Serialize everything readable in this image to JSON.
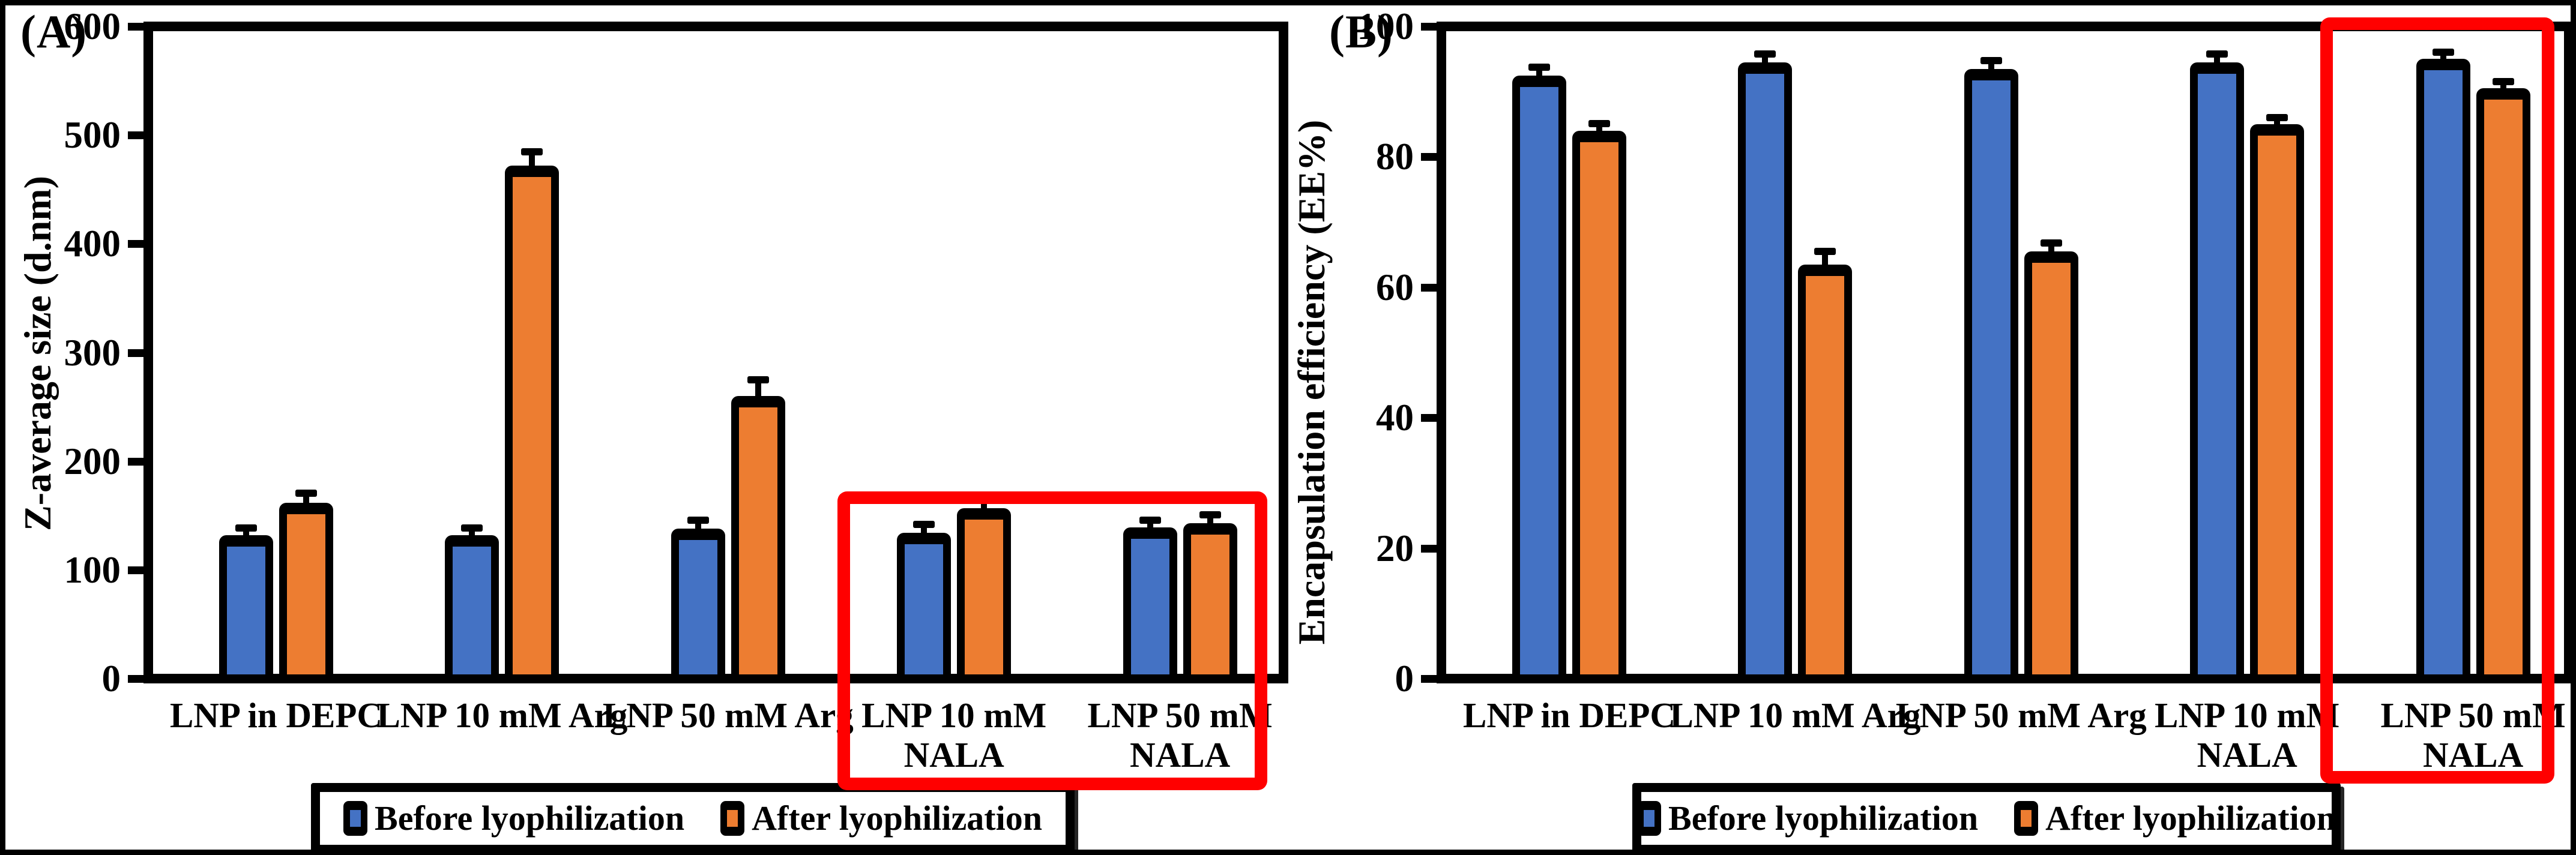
{
  "legend": {
    "items": [
      {
        "label": "Before lyophilization",
        "color": "#4472C4"
      },
      {
        "label": "After lyophilization",
        "color": "#ED7D31"
      }
    ]
  },
  "colors": {
    "before": "#4472C4",
    "after": "#ED7D31",
    "highlight": "#FF0000",
    "axis": "#000000"
  },
  "chart_data": [
    {
      "id": "A",
      "type": "bar",
      "panel_label": "(A)",
      "title": "",
      "xlabel": "",
      "ylabel": "Z-average size (d.nm)",
      "ylim": [
        0,
        600
      ],
      "yticks": [
        0,
        100,
        200,
        300,
        400,
        500,
        600
      ],
      "grid": false,
      "legend_position": "bottom",
      "categories": [
        "LNP in DEPC",
        "LNP 10 mM Arg",
        "LNP 50 mM Arg",
        "LNP 10 mM NALA",
        "LNP 50 mM NALA"
      ],
      "series": [
        {
          "name": "Before lyophilization",
          "color": "#4472C4",
          "values": [
            132,
            132,
            138,
            134,
            139
          ],
          "errors": [
            4,
            4,
            5,
            5,
            4
          ]
        },
        {
          "name": "After lyophilization",
          "color": "#ED7D31",
          "values": [
            162,
            472,
            260,
            157,
            143
          ],
          "errors": [
            6,
            10,
            12,
            6,
            5
          ]
        }
      ],
      "highlight_box": {
        "color": "#FF0000",
        "categories": [
          "LNP 10 mM NALA",
          "LNP 50 mM NALA"
        ]
      }
    },
    {
      "id": "B",
      "type": "bar",
      "panel_label": "(B)",
      "title": "",
      "xlabel": "",
      "ylabel": "Encapsulation efficiency (EE%)",
      "ylim": [
        0,
        100
      ],
      "yticks": [
        0,
        20,
        40,
        60,
        80,
        100
      ],
      "grid": false,
      "legend_position": "bottom",
      "categories": [
        "LNP in DEPC",
        "LNP 10 mM Arg",
        "LNP 50 mM Arg",
        "LNP 10 mM NALA",
        "LNP 50 mM NALA"
      ],
      "series": [
        {
          "name": "Before lyophilization",
          "color": "#4472C4",
          "values": [
            92.5,
            94.5,
            93.5,
            94.5,
            95
          ],
          "errors": [
            0.8,
            0.8,
            0.8,
            0.8,
            0.5
          ]
        },
        {
          "name": "After lyophilization",
          "color": "#ED7D31",
          "values": [
            84,
            63.5,
            65.5,
            85,
            90.5
          ],
          "errors": [
            0.6,
            1.5,
            0.8,
            0.6,
            0.6
          ]
        }
      ],
      "highlight_box": {
        "color": "#FF0000",
        "categories": [
          "LNP 50 mM NALA"
        ]
      }
    }
  ]
}
